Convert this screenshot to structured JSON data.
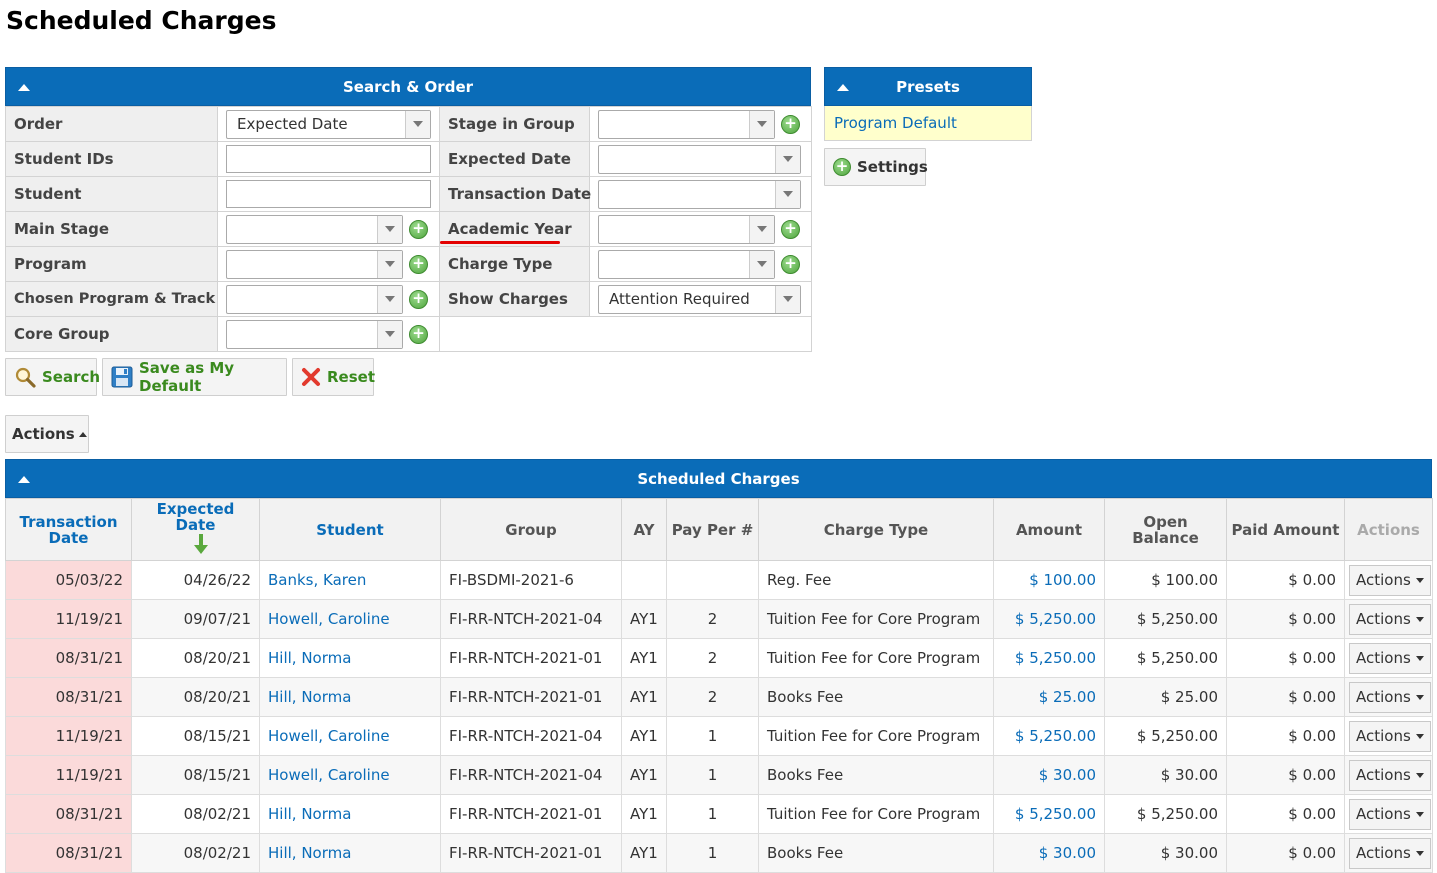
{
  "page": {
    "title": "Scheduled Charges"
  },
  "search_panel": {
    "title": "Search & Order",
    "left_fields": [
      {
        "label": "Order",
        "type": "select",
        "value": "Expected Date",
        "plus": false
      },
      {
        "label": "Student IDs",
        "type": "text",
        "value": ""
      },
      {
        "label": "Student",
        "type": "text",
        "value": ""
      },
      {
        "label": "Main Stage",
        "type": "select",
        "value": "",
        "plus": true
      },
      {
        "label": "Program",
        "type": "select",
        "value": "",
        "plus": true
      },
      {
        "label": "Chosen Program & Track",
        "type": "select",
        "value": "",
        "plus": true
      },
      {
        "label": "Core Group",
        "type": "select",
        "value": "",
        "plus": true
      }
    ],
    "right_fields": [
      {
        "label": "Stage in Group",
        "type": "select",
        "value": "",
        "plus": true
      },
      {
        "label": "Expected Date",
        "type": "select",
        "value": "",
        "plus": false
      },
      {
        "label": "Transaction Date",
        "type": "select",
        "value": "",
        "plus": false
      },
      {
        "label": "Academic Year",
        "type": "select",
        "value": "",
        "plus": true
      },
      {
        "label": "Charge Type",
        "type": "select",
        "value": "",
        "plus": true
      },
      {
        "label": "Show Charges",
        "type": "select",
        "value": "Attention Required",
        "plus": false
      }
    ]
  },
  "buttons": {
    "search": "Search",
    "save_default": "Save as My Default",
    "reset": "Reset",
    "actions": "Actions",
    "settings": "Settings"
  },
  "presets": {
    "title": "Presets",
    "items": [
      "Program Default"
    ]
  },
  "charges_table": {
    "title": "Scheduled Charges",
    "columns": [
      "Transaction Date",
      "Expected Date",
      "Student",
      "Group",
      "AY",
      "Pay Per #",
      "Charge Type",
      "Amount",
      "Open Balance",
      "Paid Amount",
      "Actions"
    ],
    "row_action_label": "Actions",
    "rows": [
      {
        "transaction_date": "05/03/22",
        "expected_date": "04/26/22",
        "student": "Banks, Karen",
        "group": "FI-BSDMI-2021-6",
        "ay": "",
        "pay_per": "",
        "charge_type": "Reg. Fee",
        "amount": "$ 100.00",
        "open_balance": "$ 100.00",
        "paid_amount": "$ 0.00"
      },
      {
        "transaction_date": "11/19/21",
        "expected_date": "09/07/21",
        "student": "Howell, Caroline",
        "group": "FI-RR-NTCH-2021-04",
        "ay": "AY1",
        "pay_per": "2",
        "charge_type": "Tuition Fee for Core Program",
        "amount": "$ 5,250.00",
        "open_balance": "$ 5,250.00",
        "paid_amount": "$ 0.00"
      },
      {
        "transaction_date": "08/31/21",
        "expected_date": "08/20/21",
        "student": "Hill, Norma",
        "group": "FI-RR-NTCH-2021-01",
        "ay": "AY1",
        "pay_per": "2",
        "charge_type": "Tuition Fee for Core Program",
        "amount": "$ 5,250.00",
        "open_balance": "$ 5,250.00",
        "paid_amount": "$ 0.00"
      },
      {
        "transaction_date": "08/31/21",
        "expected_date": "08/20/21",
        "student": "Hill, Norma",
        "group": "FI-RR-NTCH-2021-01",
        "ay": "AY1",
        "pay_per": "2",
        "charge_type": "Books Fee",
        "amount": "$ 25.00",
        "open_balance": "$ 25.00",
        "paid_amount": "$ 0.00"
      },
      {
        "transaction_date": "11/19/21",
        "expected_date": "08/15/21",
        "student": "Howell, Caroline",
        "group": "FI-RR-NTCH-2021-04",
        "ay": "AY1",
        "pay_per": "1",
        "charge_type": "Tuition Fee for Core Program",
        "amount": "$ 5,250.00",
        "open_balance": "$ 5,250.00",
        "paid_amount": "$ 0.00"
      },
      {
        "transaction_date": "11/19/21",
        "expected_date": "08/15/21",
        "student": "Howell, Caroline",
        "group": "FI-RR-NTCH-2021-04",
        "ay": "AY1",
        "pay_per": "1",
        "charge_type": "Books Fee",
        "amount": "$ 30.00",
        "open_balance": "$ 30.00",
        "paid_amount": "$ 0.00"
      },
      {
        "transaction_date": "08/31/21",
        "expected_date": "08/02/21",
        "student": "Hill, Norma",
        "group": "FI-RR-NTCH-2021-01",
        "ay": "AY1",
        "pay_per": "1",
        "charge_type": "Tuition Fee for Core Program",
        "amount": "$ 5,250.00",
        "open_balance": "$ 5,250.00",
        "paid_amount": "$ 0.00"
      },
      {
        "transaction_date": "08/31/21",
        "expected_date": "08/02/21",
        "student": "Hill, Norma",
        "group": "FI-RR-NTCH-2021-01",
        "ay": "AY1",
        "pay_per": "1",
        "charge_type": "Books Fee",
        "amount": "$ 30.00",
        "open_balance": "$ 30.00",
        "paid_amount": "$ 0.00"
      }
    ]
  },
  "colors": {
    "header_blue": "#0a6cb8",
    "link_blue": "#0a6cb8",
    "transaction_date_highlight": "#fbdada",
    "preset_highlight": "#ffffcc",
    "annotation_red": "#e30000"
  }
}
